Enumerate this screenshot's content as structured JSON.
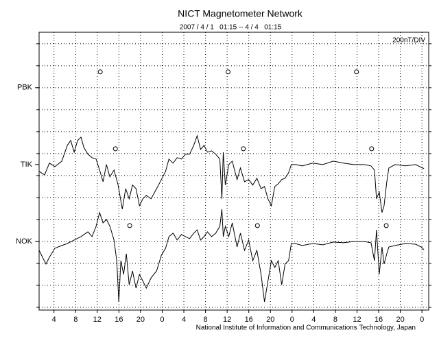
{
  "chart_data": {
    "type": "line",
    "title": "NICT Magnetometer Network",
    "subtitle": "2007 / 4 / 1   01:15 -- 4 / 4   01:15",
    "scale_label": "200nT/DIV",
    "footer": "National Institute of Information and Communications Technology, Japan",
    "xlim": [
      1.25,
      73.25
    ],
    "xticks": [
      4,
      8,
      12,
      16,
      20,
      {
        "value": 24,
        "label": "0"
      },
      {
        "value": 28,
        "label": "4"
      },
      {
        "value": 32,
        "label": "8"
      },
      {
        "value": 36,
        "label": "12"
      },
      {
        "value": 40,
        "label": "16"
      },
      {
        "value": 44,
        "label": "20"
      },
      {
        "value": 48,
        "label": "0"
      },
      {
        "value": 52,
        "label": "4"
      },
      {
        "value": 56,
        "label": "8"
      },
      {
        "value": 60,
        "label": "12"
      },
      {
        "value": 64,
        "label": "16"
      },
      {
        "value": 68,
        "label": "20"
      },
      {
        "value": 72,
        "label": "0"
      }
    ],
    "ylim": [
      0,
      2530
    ],
    "yticks": [
      {
        "value": 2025,
        "label": "PBK"
      },
      {
        "value": 1325,
        "label": "TIK"
      },
      {
        "value": 625,
        "label": "NOK"
      }
    ],
    "ygrid": [
      25,
      225,
      425,
      625,
      825,
      1025,
      1225,
      1425,
      1625,
      1825,
      2025,
      2225,
      2425
    ],
    "grid": true,
    "markers": {
      "x": [
        12.55,
        36.17,
        59.9,
        15.35,
        39.0,
        62.7,
        18.0,
        41.6,
        65.4
      ],
      "y": [
        2169,
        2169,
        2169,
        1469,
        1469,
        1469,
        769,
        769,
        769
      ]
    },
    "series": [
      {
        "name": "TIK",
        "color": "#000000",
        "x": [
          1.25,
          2.27,
          3.15,
          4.17,
          5.44,
          6.46,
          7.09,
          7.73,
          8.36,
          9.0,
          9.51,
          10.27,
          11.03,
          11.79,
          12.43,
          13.06,
          13.7,
          14.33,
          15.09,
          15.85,
          16.62,
          17.25,
          17.89,
          18.52,
          19.16,
          19.79,
          20.43,
          21.06,
          21.95,
          22.97,
          23.85,
          24.62,
          25.25,
          26.01,
          26.77,
          27.54,
          28.3,
          29.06,
          29.82,
          30.46,
          31.09,
          31.73,
          32.36,
          33.13,
          33.89,
          34.65,
          35.03,
          35.29,
          35.67,
          36.3,
          36.94,
          37.83,
          38.46,
          39.22,
          39.98,
          40.74,
          41.5,
          42.27,
          42.9,
          43.54,
          44.17,
          44.81,
          45.44,
          46.08,
          46.71,
          47.35,
          47.86,
          48.62,
          49.89,
          51.79,
          53.7,
          55.6,
          57.51,
          59.41,
          61.32,
          62.59,
          63.22,
          63.6,
          64.11,
          64.62,
          65.0,
          65.51,
          65.89,
          67.04,
          68.94,
          70.84,
          71.86,
          72.37
        ],
        "values": [
          1263,
          1231,
          1338,
          1306,
          1356,
          1500,
          1544,
          1438,
          1544,
          1575,
          1481,
          1419,
          1388,
          1375,
          1275,
          1169,
          1325,
          1213,
          1275,
          1138,
          919,
          1106,
          1013,
          1138,
          1106,
          950,
          1013,
          1044,
          1013,
          1106,
          1188,
          1263,
          1375,
          1338,
          1388,
          1375,
          1419,
          1419,
          1500,
          1588,
          1463,
          1500,
          1438,
          1450,
          1419,
          1375,
          1013,
          1438,
          1138,
          1325,
          1356,
          1188,
          1294,
          1169,
          1188,
          1138,
          1200,
          1106,
          1125,
          1013,
          950,
          1125,
          1150,
          1188,
          1200,
          1250,
          1325,
          1325,
          1313,
          1338,
          1325,
          1356,
          1338,
          1325,
          1325,
          1313,
          1275,
          1013,
          1075,
          888,
          950,
          1169,
          1294,
          1325,
          1313,
          1325,
          1300,
          1288
        ]
      },
      {
        "name": "NOK",
        "color": "#000000",
        "x": [
          1.25,
          1.89,
          2.52,
          3.15,
          4.17,
          5.44,
          6.46,
          7.73,
          9.0,
          10.27,
          11.03,
          11.79,
          12.43,
          13.06,
          13.7,
          14.33,
          15.09,
          15.6,
          15.98,
          16.36,
          16.87,
          17.38,
          17.89,
          18.52,
          19.16,
          19.79,
          20.43,
          21.06,
          21.95,
          22.97,
          23.85,
          24.62,
          25.25,
          26.01,
          26.77,
          27.54,
          28.3,
          29.06,
          29.82,
          30.46,
          31.09,
          31.73,
          32.36,
          33.13,
          33.89,
          34.65,
          35.03,
          35.29,
          35.67,
          36.3,
          36.94,
          37.83,
          38.46,
          39.22,
          39.98,
          40.74,
          41.5,
          42.27,
          42.9,
          43.54,
          44.17,
          44.81,
          45.44,
          46.08,
          46.71,
          47.35,
          47.86,
          48.62,
          49.89,
          51.79,
          53.7,
          55.6,
          57.51,
          59.41,
          61.32,
          62.59,
          63.22,
          63.6,
          64.11,
          64.62,
          65.0,
          65.51,
          65.89,
          67.04,
          68.94,
          70.84,
          71.86,
          72.37
        ],
        "values": [
          544,
          481,
          419,
          481,
          563,
          588,
          606,
          638,
          669,
          713,
          669,
          763,
          888,
          794,
          825,
          763,
          638,
          450,
          75,
          450,
          325,
          513,
          231,
          356,
          200,
          325,
          263,
          200,
          294,
          356,
          500,
          563,
          669,
          700,
          638,
          688,
          669,
          650,
          700,
          731,
          638,
          669,
          713,
          669,
          700,
          763,
          919,
          669,
          763,
          669,
          794,
          575,
          700,
          544,
          638,
          450,
          544,
          325,
          75,
          263,
          450,
          388,
          450,
          231,
          419,
          450,
          606,
          606,
          588,
          606,
          594,
          619,
          613,
          625,
          625,
          613,
          450,
          731,
          325,
          575,
          419,
          513,
          575,
          588,
          606,
          600,
          575,
          550
        ]
      }
    ]
  }
}
